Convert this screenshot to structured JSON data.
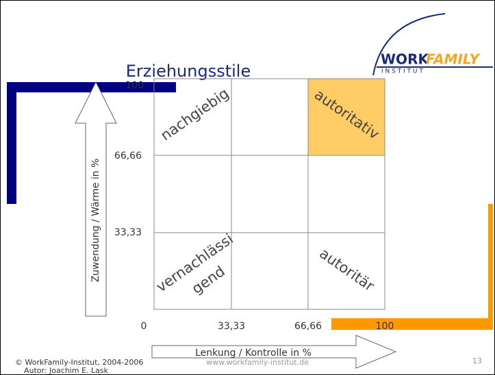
{
  "header": {
    "title": "Erziehungsstile",
    "logo": {
      "word1": "WORK",
      "word2": "FAMILY",
      "sub": "I N S T I T U T"
    }
  },
  "y_axis": {
    "label": "Zuwendung / Wärme in %",
    "ticks": [
      "100",
      "66,66",
      "33,33"
    ]
  },
  "x_axis": {
    "label": "Lenkung / Kontrolle in %",
    "ticks": [
      "0",
      "33,33",
      "66,66",
      "100"
    ]
  },
  "cells": {
    "top_left": "nachgiebig",
    "top_right": "autoritativ",
    "bottom_left": [
      "vernachlässi",
      "gend"
    ],
    "bottom_right": "autoritär"
  },
  "footer": {
    "copyright": "© WorkFamily-Institut, 2004-2006",
    "author": "Autor: Joachim E. Lask",
    "url": "www.workfamily-institut.de",
    "page": "13"
  }
}
